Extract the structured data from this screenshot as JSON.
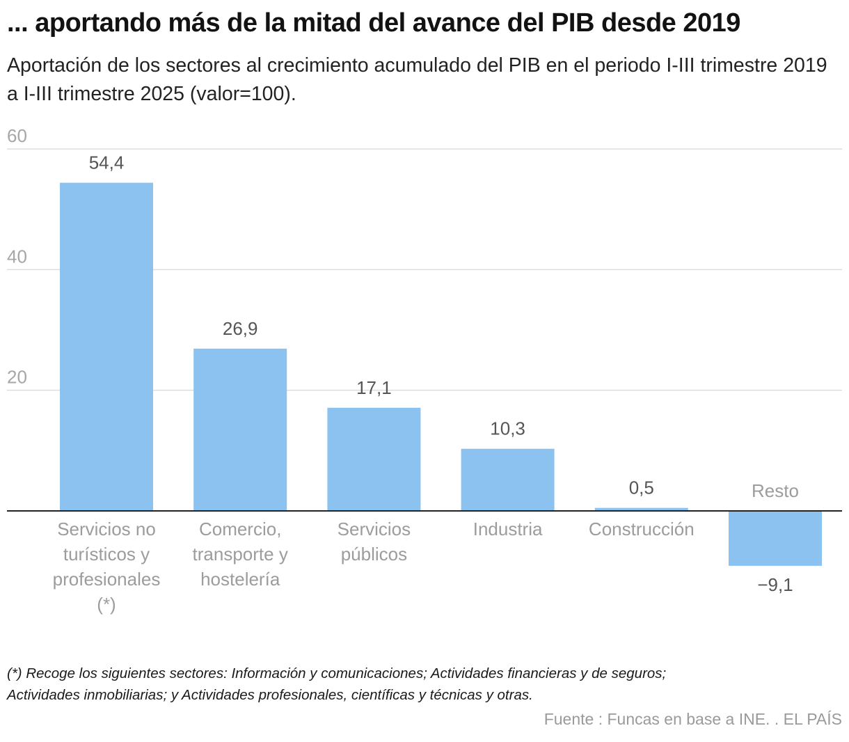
{
  "header": {
    "title": "... aportando más de la mitad del avance del PIB desde 2019",
    "subtitle": "Aportación de los sectores al crecimiento acumulado del PIB en el periodo I-III trimestre 2019 a I-III trimestre 2025 (valor=100)."
  },
  "chart_data": {
    "type": "bar",
    "title": "... aportando más de la mitad del avance del PIB desde 2019",
    "subtitle": "Aportación de los sectores al crecimiento acumulado del PIB en el periodo I-III trimestre 2019 a I-III trimestre 2025 (valor=100).",
    "categories": [
      [
        "Servicios no",
        "turísticos y",
        "profesionales",
        "(*)"
      ],
      [
        "Comercio,",
        "transporte y",
        "hostelería"
      ],
      [
        "Servicios",
        "públicos"
      ],
      [
        "Industria"
      ],
      [
        "Construcción"
      ],
      [
        "Resto"
      ]
    ],
    "values": [
      54.4,
      26.9,
      17.1,
      10.3,
      0.5,
      -9.1
    ],
    "value_labels": [
      "54,4",
      "26,9",
      "17,1",
      "10,3",
      "0,5",
      "−9,1"
    ],
    "yticks": [
      20,
      40,
      60
    ],
    "ytick_labels": [
      "20",
      "40",
      "60"
    ],
    "ylim": [
      -9.1,
      60
    ],
    "grid": true,
    "xlabel": "",
    "ylabel": "",
    "colors": {
      "bar": "#8cc2f0",
      "grid": "#dddddd",
      "baseline": "#222222",
      "tick_label": "#a6a6a6",
      "category_label": "#9c9c9c",
      "value_label": "#555555"
    }
  },
  "footer": {
    "footnote_lines": [
      "(*) Recoge los siguientes sectores: Información y comunicaciones; Actividades financieras y de seguros;",
      "Actividades inmobiliarias; y Actividades profesionales, científicas y técnicas y otras."
    ],
    "source": "Fuente : Funcas en base a INE. . EL PAÍS"
  }
}
